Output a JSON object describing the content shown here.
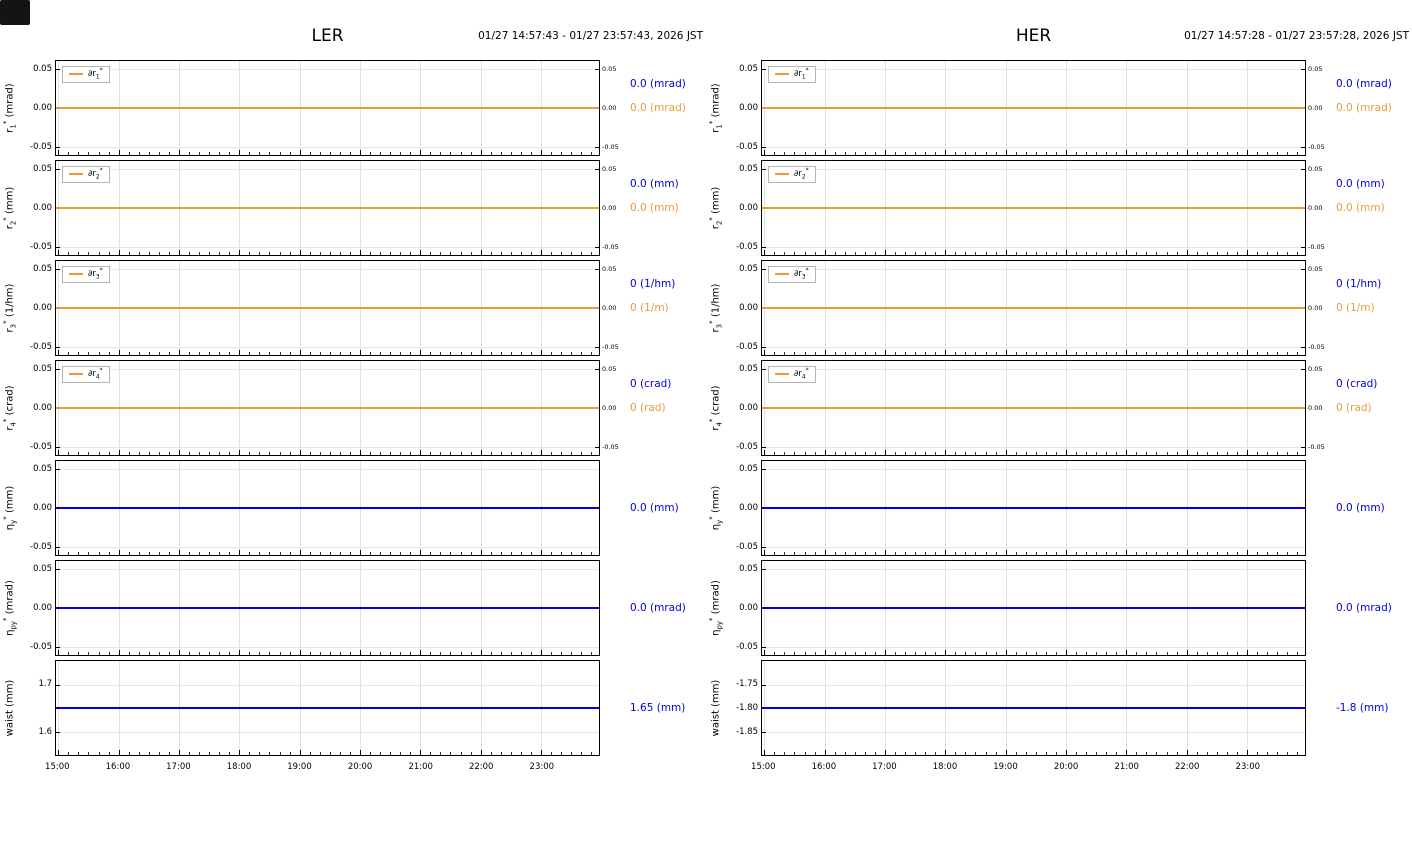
{
  "corner_box": {
    "color": "#141414"
  },
  "colors": {
    "orange": "#ea9c39",
    "blue": "#0000e0",
    "grid": "#e0e0e0",
    "axis": "#000000"
  },
  "x_axis": {
    "start_offset_min": 2.3,
    "span_min": 540,
    "minor_step_min": 10
  },
  "chart_data": [
    {
      "id": "LER",
      "type": "line",
      "title": "LER",
      "time_range_label": "01/27 14:57:43 - 01/27 23:57:43, 2026 JST",
      "x_tick_labels": [
        "15:00",
        "16:00",
        "17:00",
        "18:00",
        "19:00",
        "20:00",
        "21:00",
        "22:00",
        "23:00"
      ],
      "subplots": [
        {
          "ylabel": "r_1^* (mrad)",
          "ylim": [
            -0.061,
            0.061
          ],
          "yticks": [
            {
              "v": 0.05,
              "label": "0.05"
            },
            {
              "v": 0.0,
              "label": "0.00"
            },
            {
              "v": -0.05,
              "label": "-0.05"
            }
          ],
          "mirror_right_ticks": true,
          "legend": "∂r_1^*",
          "series": [
            {
              "name": "∂r_1^*",
              "color": "orange",
              "value": 0.0
            }
          ],
          "readouts": [
            {
              "text": "0.0 (mrad)",
              "color": "blue"
            },
            {
              "text": "0.0 (mrad)",
              "color": "orange"
            }
          ]
        },
        {
          "ylabel": "r_2^* (mm)",
          "ylim": [
            -0.061,
            0.061
          ],
          "yticks": [
            {
              "v": 0.05,
              "label": "0.05"
            },
            {
              "v": 0.0,
              "label": "0.00"
            },
            {
              "v": -0.05,
              "label": "-0.05"
            }
          ],
          "mirror_right_ticks": true,
          "legend": "∂r_2^*",
          "series": [
            {
              "name": "∂r_2^*",
              "color": "orange",
              "value": 0.0
            }
          ],
          "readouts": [
            {
              "text": "0.0 (mm)",
              "color": "blue"
            },
            {
              "text": "0.0 (mm)",
              "color": "orange"
            }
          ]
        },
        {
          "ylabel": "r_3^* (1/hm)",
          "ylim": [
            -0.061,
            0.061
          ],
          "yticks": [
            {
              "v": 0.05,
              "label": "0.05"
            },
            {
              "v": 0.0,
              "label": "0.00"
            },
            {
              "v": -0.05,
              "label": "-0.05"
            }
          ],
          "mirror_right_ticks": true,
          "legend": "∂r_3^*",
          "series": [
            {
              "name": "∂r_3^*",
              "color": "orange",
              "value": 0.0
            }
          ],
          "readouts": [
            {
              "text": "0 (1/hm)",
              "color": "blue"
            },
            {
              "text": "0 (1/m)",
              "color": "orange"
            }
          ]
        },
        {
          "ylabel": "r_4^* (crad)",
          "ylim": [
            -0.061,
            0.061
          ],
          "yticks": [
            {
              "v": 0.05,
              "label": "0.05"
            },
            {
              "v": 0.0,
              "label": "0.00"
            },
            {
              "v": -0.05,
              "label": "-0.05"
            }
          ],
          "mirror_right_ticks": true,
          "legend": "∂r_4^*",
          "series": [
            {
              "name": "∂r_4^*",
              "color": "orange",
              "value": 0.0
            }
          ],
          "readouts": [
            {
              "text": "0 (crad)",
              "color": "blue"
            },
            {
              "text": "0 (rad)",
              "color": "orange"
            }
          ]
        },
        {
          "ylabel": "η_y^* (mm)",
          "ylim": [
            -0.061,
            0.061
          ],
          "yticks": [
            {
              "v": 0.05,
              "label": "0.05"
            },
            {
              "v": 0.0,
              "label": "0.00"
            },
            {
              "v": -0.05,
              "label": "-0.05"
            }
          ],
          "mirror_right_ticks": false,
          "legend": null,
          "series": [
            {
              "name": "η_y^*",
              "color": "blue",
              "value": 0.0
            }
          ],
          "readouts": [
            {
              "text": "0.0 (mm)",
              "color": "blue"
            }
          ]
        },
        {
          "ylabel": "η_{py}^* (mrad)",
          "ylim": [
            -0.061,
            0.061
          ],
          "yticks": [
            {
              "v": 0.05,
              "label": "0.05"
            },
            {
              "v": 0.0,
              "label": "0.00"
            },
            {
              "v": -0.05,
              "label": "-0.05"
            }
          ],
          "mirror_right_ticks": false,
          "legend": null,
          "series": [
            {
              "name": "η_{py}^*",
              "color": "blue",
              "value": 0.0
            }
          ],
          "readouts": [
            {
              "text": "0.0 (mrad)",
              "color": "blue"
            }
          ]
        },
        {
          "ylabel": "waist (mm)",
          "ylim": [
            1.55,
            1.75
          ],
          "yticks": [
            {
              "v": 1.7,
              "label": "1.7"
            },
            {
              "v": 1.6,
              "label": "1.6"
            }
          ],
          "mirror_right_ticks": false,
          "legend": null,
          "series": [
            {
              "name": "waist",
              "color": "blue",
              "value": 1.65
            }
          ],
          "readouts": [
            {
              "text": "1.65 (mm)",
              "color": "blue"
            }
          ]
        }
      ]
    },
    {
      "id": "HER",
      "type": "line",
      "title": "HER",
      "time_range_label": "01/27 14:57:28 - 01/27 23:57:28, 2026 JST",
      "x_tick_labels": [
        "15:00",
        "16:00",
        "17:00",
        "18:00",
        "19:00",
        "20:00",
        "21:00",
        "22:00",
        "23:00"
      ],
      "subplots": [
        {
          "ylabel": "r_1^* (mrad)",
          "ylim": [
            -0.061,
            0.061
          ],
          "yticks": [
            {
              "v": 0.05,
              "label": "0.05"
            },
            {
              "v": 0.0,
              "label": "0.00"
            },
            {
              "v": -0.05,
              "label": "-0.05"
            }
          ],
          "mirror_right_ticks": true,
          "legend": "∂r_1^*",
          "series": [
            {
              "name": "∂r_1^*",
              "color": "orange",
              "value": 0.0
            }
          ],
          "readouts": [
            {
              "text": "0.0 (mrad)",
              "color": "blue"
            },
            {
              "text": "0.0 (mrad)",
              "color": "orange"
            }
          ]
        },
        {
          "ylabel": "r_2^* (mm)",
          "ylim": [
            -0.061,
            0.061
          ],
          "yticks": [
            {
              "v": 0.05,
              "label": "0.05"
            },
            {
              "v": 0.0,
              "label": "0.00"
            },
            {
              "v": -0.05,
              "label": "-0.05"
            }
          ],
          "mirror_right_ticks": true,
          "legend": "∂r_2^*",
          "series": [
            {
              "name": "∂r_2^*",
              "color": "orange",
              "value": 0.0
            }
          ],
          "readouts": [
            {
              "text": "0.0 (mm)",
              "color": "blue"
            },
            {
              "text": "0.0 (mm)",
              "color": "orange"
            }
          ]
        },
        {
          "ylabel": "r_3^* (1/hm)",
          "ylim": [
            -0.061,
            0.061
          ],
          "yticks": [
            {
              "v": 0.05,
              "label": "0.05"
            },
            {
              "v": 0.0,
              "label": "0.00"
            },
            {
              "v": -0.05,
              "label": "-0.05"
            }
          ],
          "mirror_right_ticks": true,
          "legend": "∂r_3^*",
          "series": [
            {
              "name": "∂r_3^*",
              "color": "orange",
              "value": 0.0
            }
          ],
          "readouts": [
            {
              "text": "0 (1/hm)",
              "color": "blue"
            },
            {
              "text": "0 (1/m)",
              "color": "orange"
            }
          ]
        },
        {
          "ylabel": "r_4^* (crad)",
          "ylim": [
            -0.061,
            0.061
          ],
          "yticks": [
            {
              "v": 0.05,
              "label": "0.05"
            },
            {
              "v": 0.0,
              "label": "0.00"
            },
            {
              "v": -0.05,
              "label": "-0.05"
            }
          ],
          "mirror_right_ticks": true,
          "legend": "∂r_4^*",
          "series": [
            {
              "name": "∂r_4^*",
              "color": "orange",
              "value": 0.0
            }
          ],
          "readouts": [
            {
              "text": "0 (crad)",
              "color": "blue"
            },
            {
              "text": "0 (rad)",
              "color": "orange"
            }
          ]
        },
        {
          "ylabel": "η_y^* (mm)",
          "ylim": [
            -0.061,
            0.061
          ],
          "yticks": [
            {
              "v": 0.05,
              "label": "0.05"
            },
            {
              "v": 0.0,
              "label": "0.00"
            },
            {
              "v": -0.05,
              "label": "-0.05"
            }
          ],
          "mirror_right_ticks": false,
          "legend": null,
          "series": [
            {
              "name": "η_y^*",
              "color": "blue",
              "value": 0.0
            }
          ],
          "readouts": [
            {
              "text": "0.0 (mm)",
              "color": "blue"
            }
          ]
        },
        {
          "ylabel": "η_{py}^* (mrad)",
          "ylim": [
            -0.061,
            0.061
          ],
          "yticks": [
            {
              "v": 0.05,
              "label": "0.05"
            },
            {
              "v": 0.0,
              "label": "0.00"
            },
            {
              "v": -0.05,
              "label": "-0.05"
            }
          ],
          "mirror_right_ticks": false,
          "legend": null,
          "series": [
            {
              "name": "η_{py}^*",
              "color": "blue",
              "value": 0.0
            }
          ],
          "readouts": [
            {
              "text": "0.0 (mrad)",
              "color": "blue"
            }
          ]
        },
        {
          "ylabel": "waist (mm)",
          "ylim": [
            -1.9,
            -1.7
          ],
          "yticks": [
            {
              "v": -1.75,
              "label": "-1.75"
            },
            {
              "v": -1.8,
              "label": "-1.80"
            },
            {
              "v": -1.85,
              "label": "-1.85"
            }
          ],
          "mirror_right_ticks": false,
          "legend": null,
          "series": [
            {
              "name": "waist",
              "color": "blue",
              "value": -1.8
            }
          ],
          "readouts": [
            {
              "text": "-1.8 (mm)",
              "color": "blue"
            }
          ]
        }
      ]
    }
  ]
}
